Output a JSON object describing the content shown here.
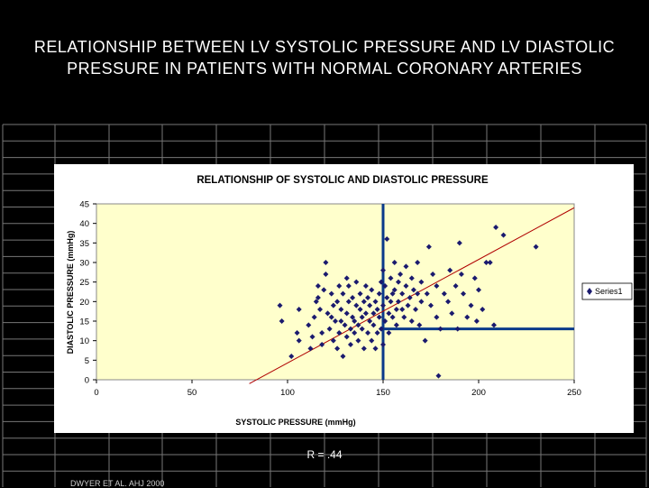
{
  "slide": {
    "title_line1": "RELATIONSHIP BETWEEN LV SYSTOLIC PRESSURE AND LV DIASTOLIC",
    "title_line2": "PRESSURE IN PATIENTS WITH NORMAL CORONARY ARTERIES",
    "r_value": "R = .44",
    "citation": "DWYER ET AL. AHJ 2000"
  },
  "colors": {
    "background": "#000000",
    "plot_area": "#ffffcc",
    "points": "#1a1a6e",
    "trendline": "#b00000",
    "marker_lines": "#0a3a8a"
  },
  "chart_data": {
    "type": "scatter",
    "title": "RELATIONSHIP OF SYSTOLIC AND DIASTOLIC PRESSURE",
    "xlabel": "SYSTOLIC PRESSURE (mmHg)",
    "ylabel": "DIASTOLIC PRESSURE (mmHg)",
    "xlim": [
      0,
      250
    ],
    "ylim": [
      0,
      45
    ],
    "xticks": [
      "0",
      "50",
      "100",
      "150",
      "200",
      "250"
    ],
    "yticks": [
      "0",
      "5",
      "10",
      "15",
      "20",
      "25",
      "30",
      "35",
      "40",
      "45"
    ],
    "grid": false,
    "legend": "right",
    "series": [
      {
        "name": "Series1",
        "points": [
          [
            96,
            19
          ],
          [
            97,
            15
          ],
          [
            102,
            6
          ],
          [
            105,
            12
          ],
          [
            106,
            18
          ],
          [
            106,
            10
          ],
          [
            111,
            14
          ],
          [
            112,
            8
          ],
          [
            113,
            11
          ],
          [
            114,
            16
          ],
          [
            116,
            21
          ],
          [
            116,
            24
          ],
          [
            117,
            18
          ],
          [
            118,
            12
          ],
          [
            118,
            9
          ],
          [
            119,
            23
          ],
          [
            120,
            27
          ],
          [
            120,
            30
          ],
          [
            121,
            17
          ],
          [
            122,
            13
          ],
          [
            123,
            22
          ],
          [
            124,
            10
          ],
          [
            124,
            19
          ],
          [
            125,
            15
          ],
          [
            126,
            8
          ],
          [
            126,
            20
          ],
          [
            127,
            24
          ],
          [
            127,
            12
          ],
          [
            128,
            18
          ],
          [
            128,
            15
          ],
          [
            129,
            6
          ],
          [
            129,
            22
          ],
          [
            130,
            14
          ],
          [
            131,
            17
          ],
          [
            131,
            11
          ],
          [
            132,
            20
          ],
          [
            132,
            24
          ],
          [
            133,
            13
          ],
          [
            133,
            9
          ],
          [
            134,
            21
          ],
          [
            134,
            16
          ],
          [
            135,
            15
          ],
          [
            135,
            12
          ],
          [
            136,
            19
          ],
          [
            136,
            25
          ],
          [
            137,
            14
          ],
          [
            137,
            10
          ],
          [
            138,
            22
          ],
          [
            138,
            18
          ],
          [
            139,
            16
          ],
          [
            139,
            13
          ],
          [
            140,
            20
          ],
          [
            140,
            8
          ],
          [
            141,
            24
          ],
          [
            141,
            17
          ],
          [
            142,
            12
          ],
          [
            142,
            21
          ],
          [
            143,
            15
          ],
          [
            143,
            19
          ],
          [
            144,
            10
          ],
          [
            144,
            23
          ],
          [
            145,
            17
          ],
          [
            145,
            14
          ],
          [
            146,
            20
          ],
          [
            146,
            8
          ],
          [
            147,
            18
          ],
          [
            147,
            12
          ],
          [
            148,
            22
          ],
          [
            148,
            16
          ],
          [
            149,
            25
          ],
          [
            149,
            13
          ],
          [
            150,
            19
          ],
          [
            150,
            28
          ],
          [
            150,
            9
          ],
          [
            151,
            24
          ],
          [
            151,
            15
          ],
          [
            152,
            21
          ],
          [
            152,
            36
          ],
          [
            153,
            17
          ],
          [
            153,
            12
          ],
          [
            154,
            26
          ],
          [
            154,
            20
          ],
          [
            155,
            22
          ],
          [
            155,
            16
          ],
          [
            156,
            30
          ],
          [
            156,
            23
          ],
          [
            157,
            18
          ],
          [
            157,
            14
          ],
          [
            158,
            25
          ],
          [
            158,
            20
          ],
          [
            159,
            27
          ],
          [
            160,
            22
          ],
          [
            160,
            18
          ],
          [
            161,
            16
          ],
          [
            162,
            24
          ],
          [
            162,
            29
          ],
          [
            163,
            19
          ],
          [
            164,
            21
          ],
          [
            165,
            15
          ],
          [
            165,
            26
          ],
          [
            166,
            23
          ],
          [
            167,
            18
          ],
          [
            168,
            30
          ],
          [
            168,
            22
          ],
          [
            169,
            14
          ],
          [
            170,
            25
          ],
          [
            170,
            20
          ],
          [
            172,
            10
          ],
          [
            173,
            22
          ],
          [
            174,
            34
          ],
          [
            175,
            19
          ],
          [
            176,
            27
          ],
          [
            178,
            16
          ],
          [
            178,
            24
          ],
          [
            179,
            1
          ],
          [
            180,
            13
          ],
          [
            182,
            22
          ],
          [
            184,
            20
          ],
          [
            185,
            28
          ],
          [
            186,
            17
          ],
          [
            188,
            24
          ],
          [
            189,
            13
          ],
          [
            190,
            35
          ],
          [
            191,
            27
          ],
          [
            192,
            22
          ],
          [
            194,
            16
          ],
          [
            196,
            19
          ],
          [
            198,
            26
          ],
          [
            199,
            15
          ],
          [
            200,
            23
          ],
          [
            202,
            18
          ],
          [
            204,
            30
          ],
          [
            206,
            30
          ],
          [
            208,
            14
          ],
          [
            209,
            39
          ],
          [
            213,
            37
          ],
          [
            230,
            34
          ],
          [
            131,
            26
          ],
          [
            123,
            16
          ],
          [
            115,
            20
          ]
        ]
      }
    ],
    "trendline": {
      "x": [
        80,
        250
      ],
      "y": [
        -1,
        44
      ]
    },
    "reference_lines": {
      "vertical_x": 150,
      "horizontal_y": 13
    }
  }
}
